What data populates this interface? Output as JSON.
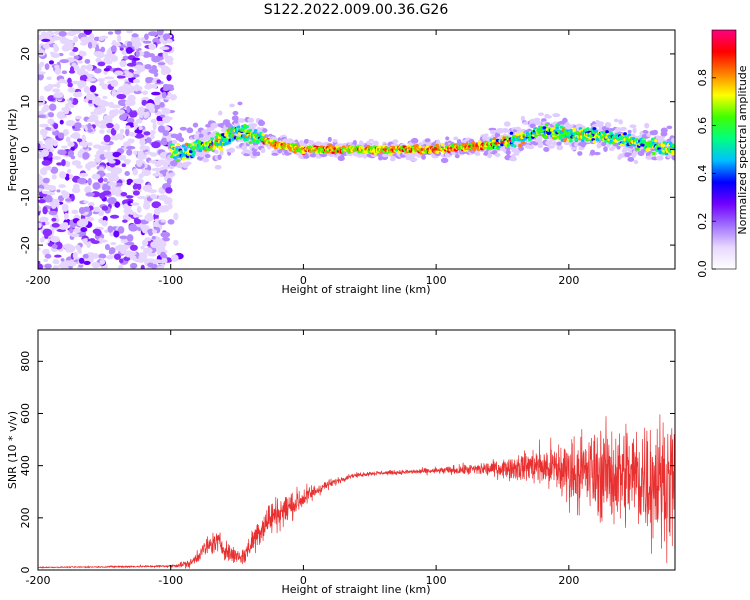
{
  "figure": {
    "title": "S122.2022.009.00.36.G26"
  },
  "chart_data": [
    {
      "type": "heatmap",
      "xlabel": "Height of straight line (km)",
      "ylabel": "Frequency (Hz)",
      "xlim": [
        -200,
        280
      ],
      "ylim": [
        -25,
        25
      ],
      "xticks": [
        -200,
        -100,
        0,
        100,
        200
      ],
      "xtick_labels": [
        "-200",
        "-100",
        "0",
        "100",
        "200"
      ],
      "yticks": [
        -20,
        -10,
        0,
        10,
        20
      ],
      "ytick_labels": [
        "-20",
        "-10",
        "0",
        "10",
        "20"
      ],
      "colorbar": {
        "label": "Normalized spectral amplitude",
        "range": [
          0,
          1
        ],
        "ticks": [
          0.0,
          0.2,
          0.4,
          0.6,
          0.8
        ],
        "tick_labels": [
          "0.0",
          "0.2",
          "0.4",
          "0.6",
          "0.8"
        ],
        "colormap": [
          "#ffffff",
          "#e8d8ff",
          "#a070ff",
          "#7000ff",
          "#0000ff",
          "#00c0ff",
          "#00ff80",
          "#40ff00",
          "#ffff00",
          "#ff8000",
          "#ff0000",
          "#ff0080"
        ]
      },
      "noise_region_x": [
        -200,
        -100
      ],
      "center_frequency_track": {
        "x": [
          -100,
          -90,
          -80,
          -70,
          -60,
          -50,
          -40,
          -30,
          -20,
          -10,
          0,
          20,
          40,
          60,
          80,
          100,
          120,
          140,
          160,
          180,
          200,
          220,
          240,
          260,
          280
        ],
        "y": [
          0,
          -1,
          0.5,
          1,
          2,
          4,
          3,
          2,
          1,
          0.5,
          0,
          0,
          0,
          0,
          0,
          0,
          0.5,
          1,
          2,
          4,
          3,
          3,
          2,
          1,
          0
        ]
      }
    },
    {
      "type": "line",
      "xlabel": "Height of straight line (km)",
      "ylabel": "SNR (10 * v/v)",
      "xlim": [
        -200,
        280
      ],
      "ylim": [
        0,
        920
      ],
      "xticks": [
        -200,
        -100,
        0,
        100,
        200
      ],
      "xtick_labels": [
        "-200",
        "-100",
        "0",
        "100",
        "200"
      ],
      "yticks": [
        0,
        200,
        400,
        600,
        800
      ],
      "ytick_labels": [
        "0",
        "200",
        "400",
        "600",
        "800"
      ],
      "color": "#e83030",
      "series": [
        {
          "x": [
            -200,
            -150,
            -100,
            -85,
            -75,
            -65,
            -55,
            -45,
            -35,
            -25,
            -15,
            -5,
            5,
            15,
            25,
            35,
            50,
            75,
            100,
            125,
            150,
            175,
            200,
            225,
            250,
            265,
            280
          ],
          "y": [
            10,
            12,
            15,
            25,
            80,
            110,
            60,
            50,
            140,
            200,
            230,
            260,
            290,
            320,
            340,
            360,
            370,
            375,
            380,
            385,
            390,
            400,
            380,
            370,
            360,
            350,
            340
          ],
          "amplitude": [
            2,
            3,
            5,
            20,
            40,
            50,
            40,
            40,
            70,
            80,
            70,
            60,
            40,
            25,
            15,
            10,
            10,
            10,
            15,
            25,
            40,
            80,
            150,
            200,
            250,
            280,
            250
          ]
        }
      ]
    }
  ]
}
